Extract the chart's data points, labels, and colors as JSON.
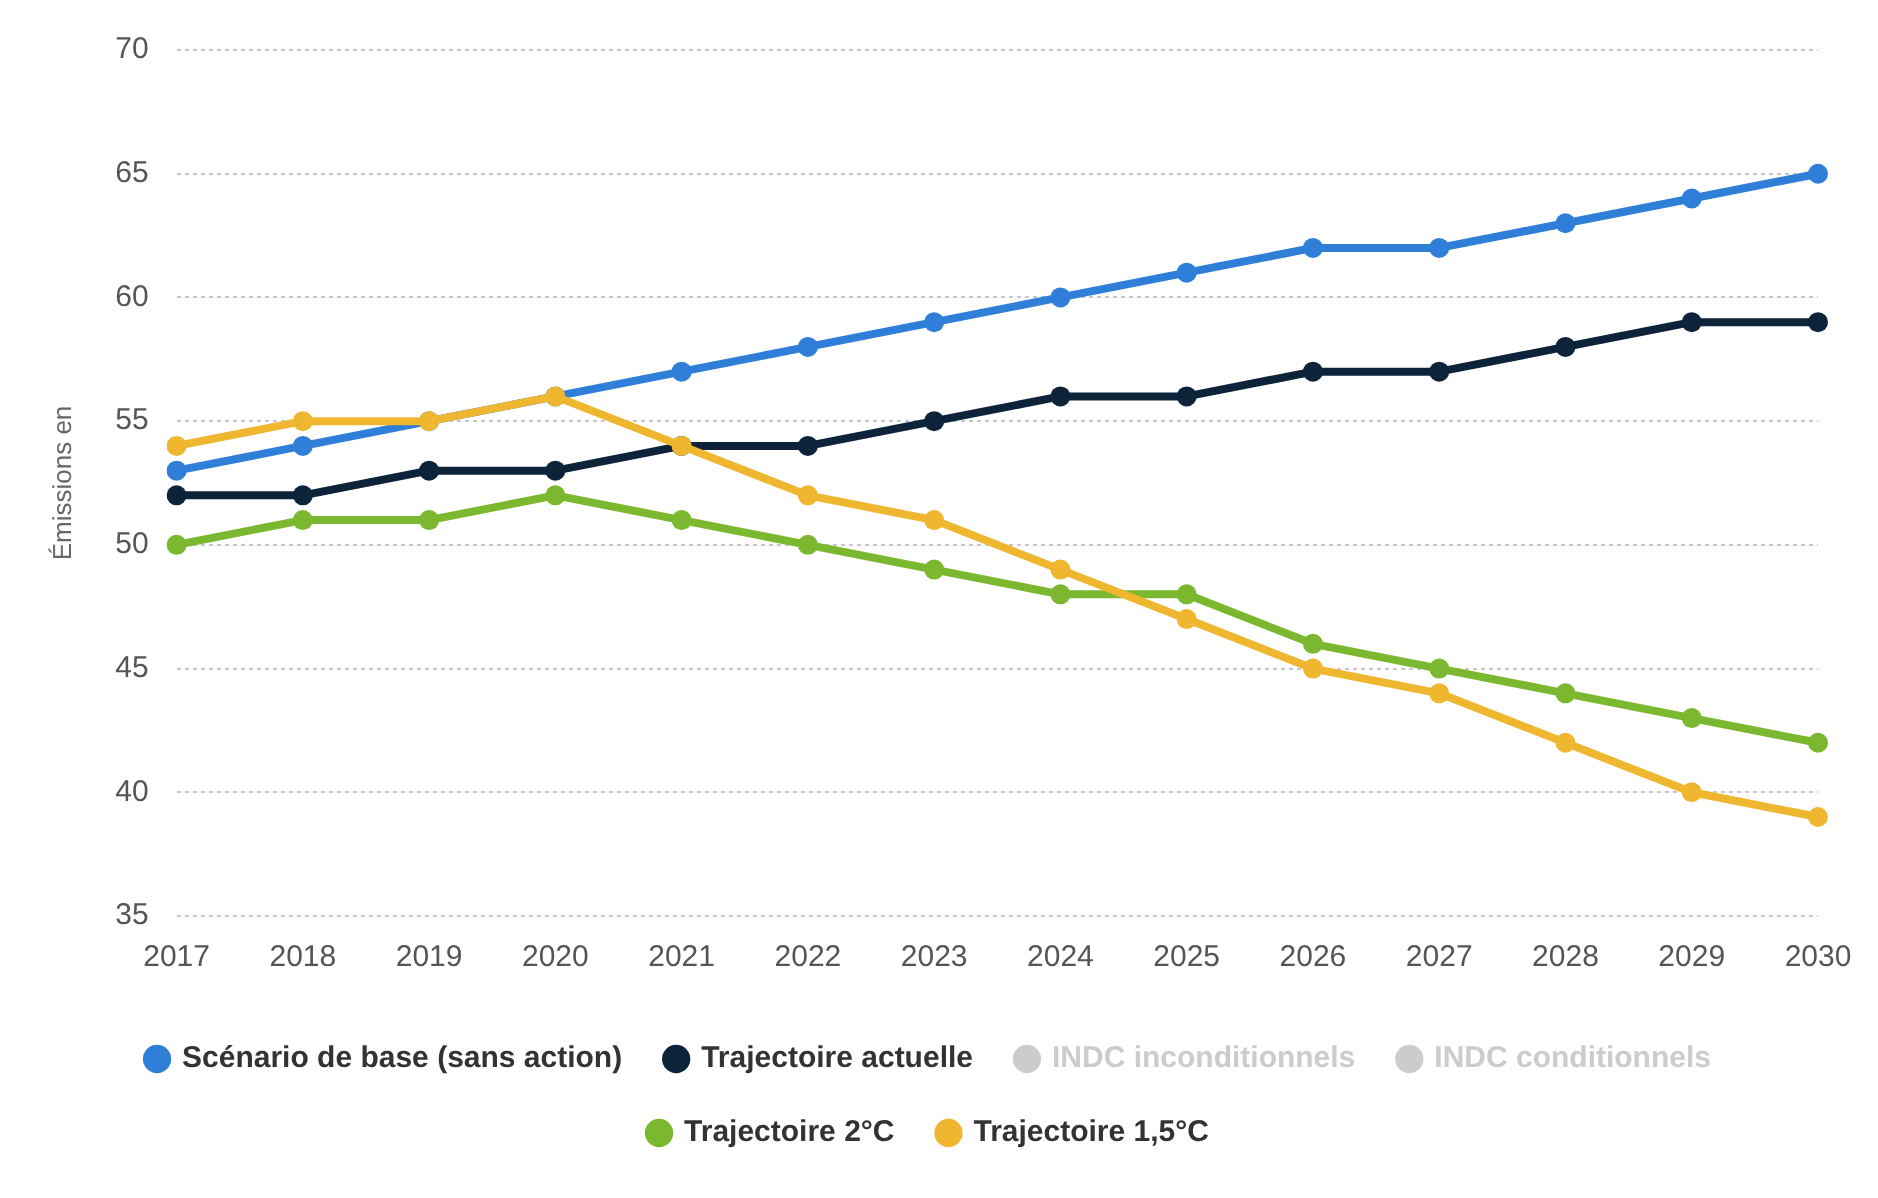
{
  "chart_data": {
    "type": "line",
    "ylabel": "Émissions en",
    "categories": [
      "2017",
      "2018",
      "2019",
      "2020",
      "2021",
      "2022",
      "2023",
      "2024",
      "2025",
      "2026",
      "2027",
      "2028",
      "2029",
      "2030"
    ],
    "series": [
      {
        "name": "Scénario de base (sans action)",
        "color": "#2f7ed8",
        "values": [
          53,
          54,
          55,
          56,
          57,
          58,
          59,
          60,
          61,
          62,
          62,
          63,
          64,
          65
        ]
      },
      {
        "name": "Trajectoire actuelle",
        "color": "#0d233a",
        "values": [
          52,
          52,
          53,
          53,
          54,
          54,
          55,
          56,
          56,
          57,
          57,
          58,
          59,
          59
        ]
      },
      {
        "name": "INDC inconditionnels",
        "color": "#cccccc",
        "values": [
          null,
          null,
          null,
          null,
          null,
          null,
          null,
          null,
          null,
          null,
          null,
          null,
          null,
          null
        ]
      },
      {
        "name": "INDC conditionnels",
        "color": "#cccccc",
        "values": [
          null,
          null,
          null,
          null,
          null,
          null,
          null,
          null,
          null,
          null,
          null,
          null,
          null,
          null
        ]
      },
      {
        "name": "Trajectoire 2°C",
        "color": "#7cb82f",
        "values": [
          50,
          51,
          51,
          52,
          51,
          50,
          49,
          48,
          48,
          46,
          45,
          44,
          43,
          42
        ]
      },
      {
        "name": "Trajectoire 1,5°C",
        "color": "#efb730",
        "values": [
          54,
          55,
          55,
          56,
          54,
          52,
          51,
          49,
          47,
          45,
          44,
          42,
          40,
          39
        ]
      }
    ],
    "ylim": [
      35,
      70
    ],
    "yticks": [
      35,
      40,
      45,
      50,
      55,
      60,
      65,
      70
    ],
    "grid": "y",
    "legend": "bottom",
    "marker": "circle",
    "line_style": "solid"
  }
}
